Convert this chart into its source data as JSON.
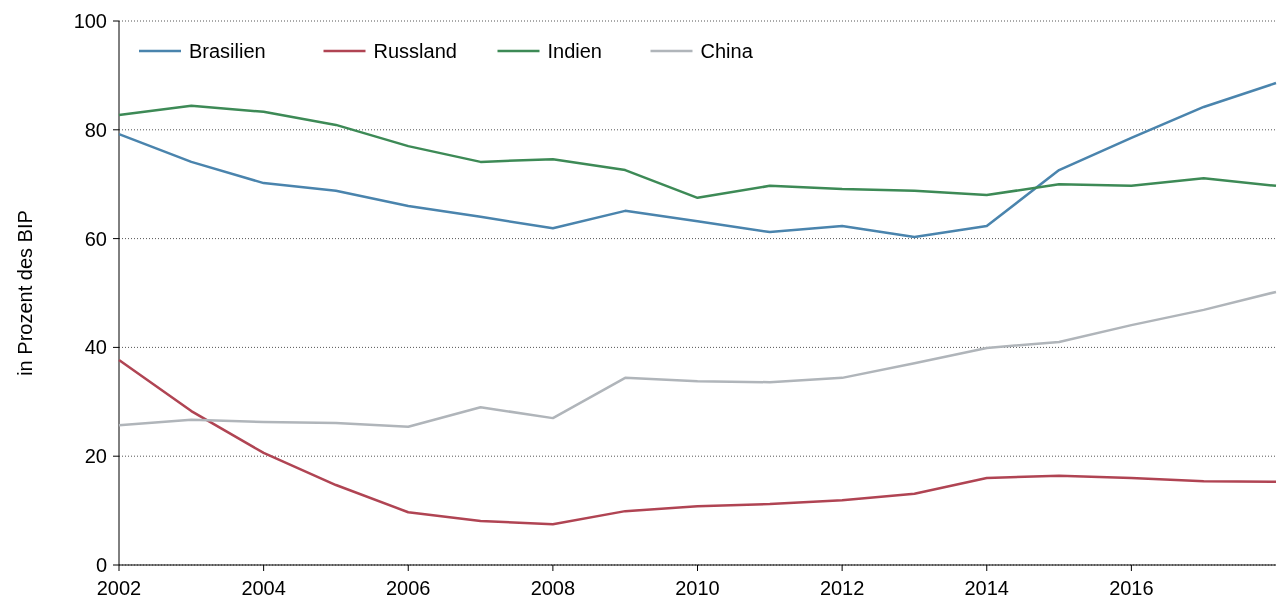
{
  "chart_data": {
    "type": "line",
    "ylabel": "in Prozent des BIP",
    "x": [
      2002,
      2003,
      2004,
      2005,
      2006,
      2007,
      2008,
      2009,
      2010,
      2011,
      2012,
      2013,
      2014,
      2015,
      2016,
      2017,
      2018
    ],
    "series": [
      {
        "name": "Brasilien",
        "color": "#4a84ad",
        "values": [
          79.2,
          74.1,
          70.2,
          68.8,
          66.0,
          64.0,
          61.9,
          65.1,
          63.2,
          61.2,
          62.3,
          60.3,
          62.3,
          72.6,
          78.5,
          84.2,
          88.6
        ]
      },
      {
        "name": "Russland",
        "color": "#b04453",
        "values": [
          37.7,
          28.3,
          20.6,
          14.7,
          9.7,
          8.1,
          7.5,
          9.9,
          10.8,
          11.2,
          11.9,
          13.1,
          16.0,
          16.4,
          16.0,
          15.4,
          15.3
        ]
      },
      {
        "name": "Indien",
        "color": "#3d8a56",
        "values": [
          82.7,
          84.4,
          83.3,
          80.9,
          77.0,
          74.1,
          74.6,
          72.6,
          67.5,
          69.7,
          69.1,
          68.8,
          68.0,
          70.0,
          69.7,
          71.1,
          69.7
        ]
      },
      {
        "name": "China",
        "color": "#b0b5ba",
        "values": [
          25.7,
          26.7,
          26.3,
          26.1,
          25.4,
          29.0,
          27.0,
          34.4,
          33.8,
          33.6,
          34.4,
          37.1,
          39.9,
          41.0,
          44.1,
          46.9,
          50.2
        ]
      }
    ],
    "xlim": [
      2002,
      2018
    ],
    "xticks": [
      2002,
      2004,
      2006,
      2008,
      2010,
      2012,
      2014,
      2016
    ],
    "ylim": [
      0,
      100
    ],
    "yticks": [
      0,
      20,
      40,
      60,
      80,
      100
    ],
    "grid": "y",
    "legend": "top left",
    "line_style": "solid",
    "marker": "none"
  }
}
